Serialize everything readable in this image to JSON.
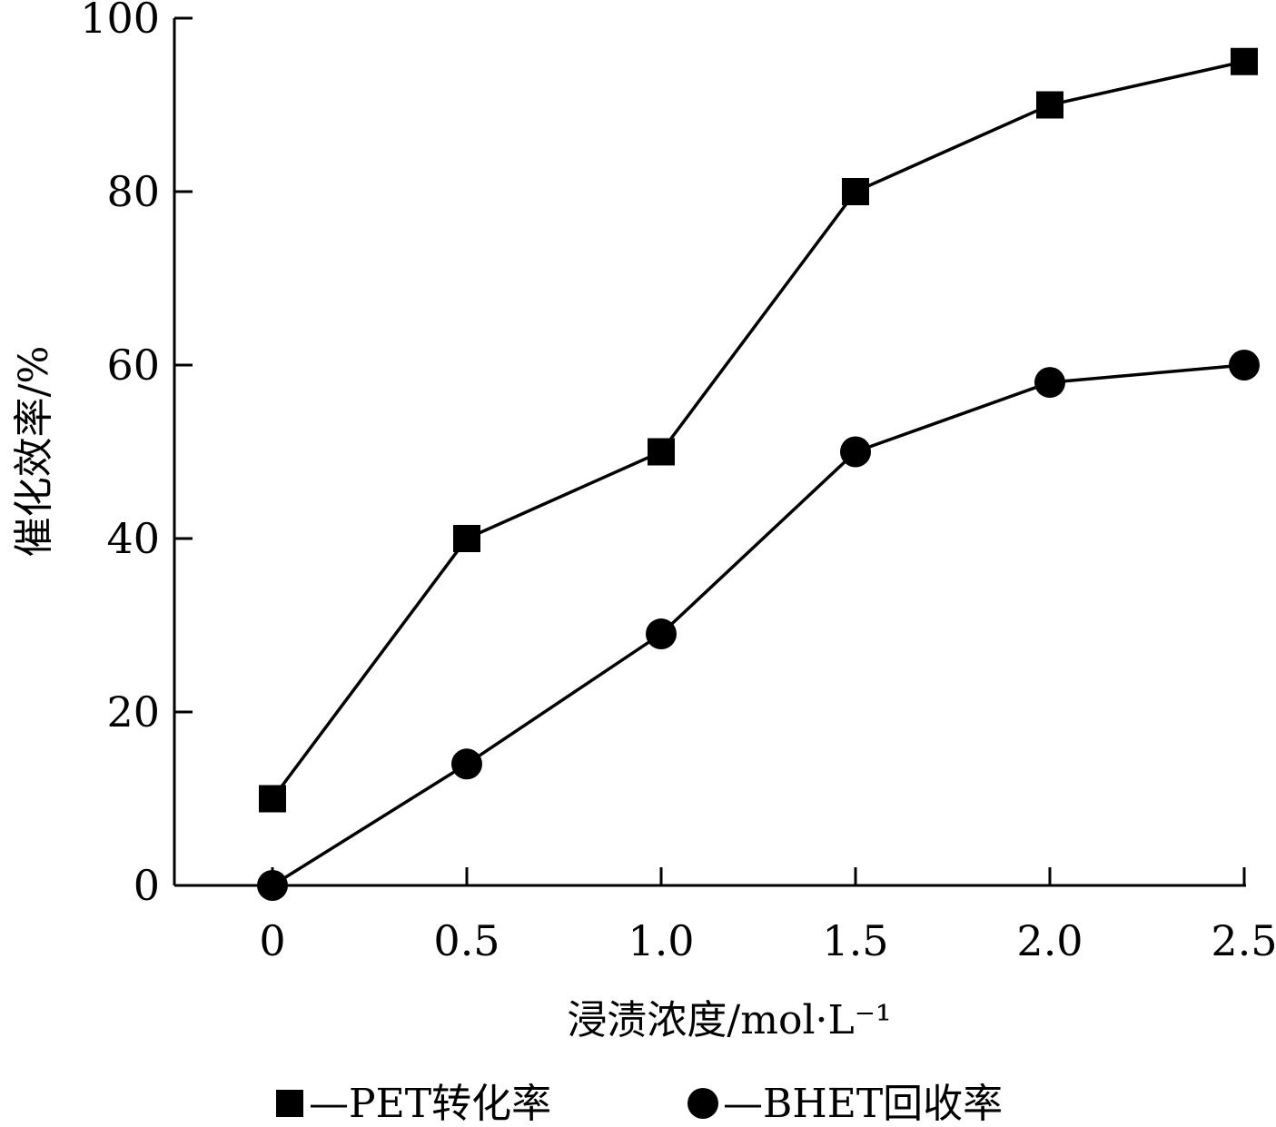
{
  "chart_data": {
    "type": "line",
    "x": [
      "0",
      "0.5",
      "1.0",
      "1.5",
      "2.0",
      "2.5"
    ],
    "x_values": [
      0,
      0.5,
      1.0,
      1.5,
      2.0,
      2.5
    ],
    "xlabel": "浸渍浓度/mol·L⁻¹",
    "ylabel": "催化效率/%",
    "ylim": [
      0,
      100
    ],
    "yticks": [
      0,
      20,
      40,
      60,
      80,
      100
    ],
    "grid": false,
    "legend_position": "bottom",
    "series": [
      {
        "name": "—PET转化率",
        "marker": "square",
        "values": [
          10,
          40,
          50,
          80,
          90,
          95
        ]
      },
      {
        "name": "—BHET回收率",
        "marker": "circle",
        "values": [
          0,
          14,
          29,
          50,
          58,
          60
        ]
      }
    ]
  }
}
